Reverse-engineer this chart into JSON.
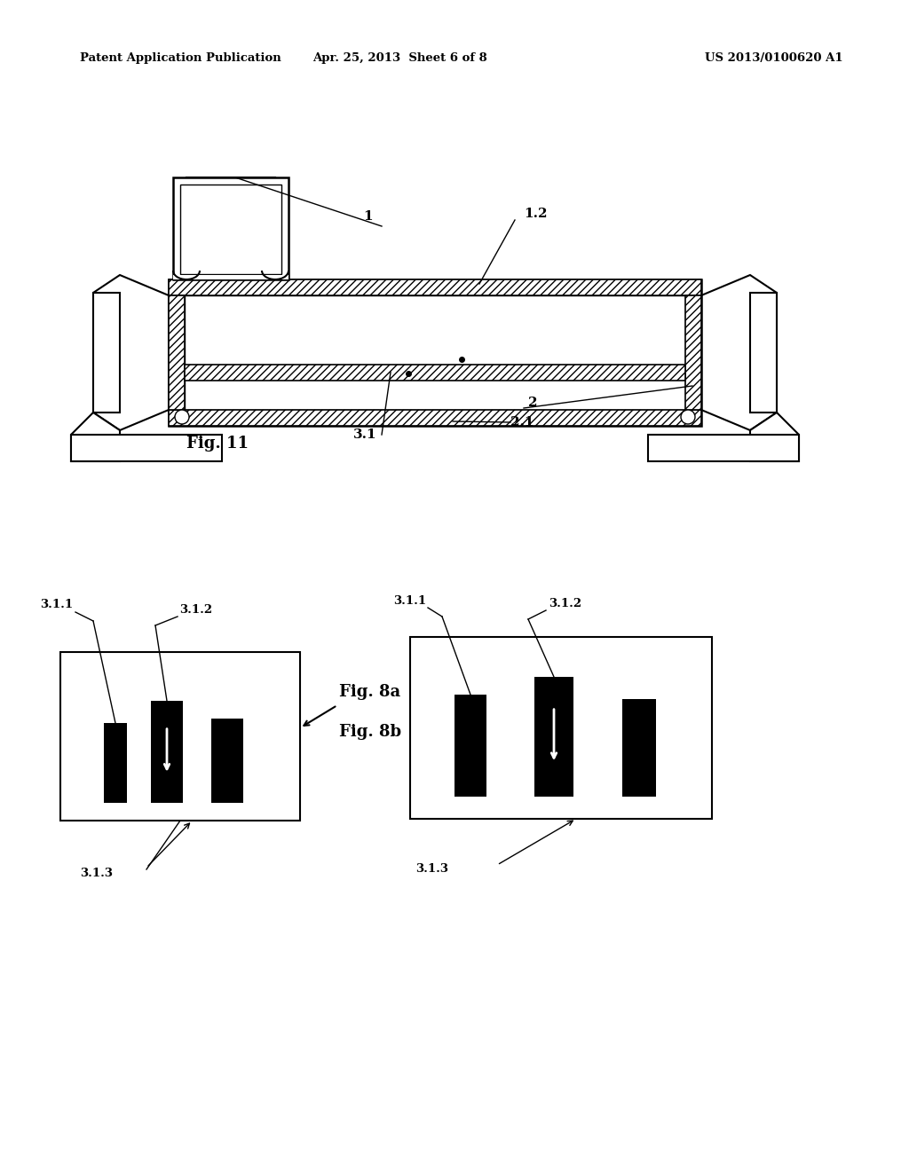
{
  "bg_color": "#ffffff",
  "header_text_left": "Patent Application Publication",
  "header_text_mid": "Apr. 25, 2013  Sheet 6 of 8",
  "header_text_right": "US 2013/0100620 A1",
  "fig11_label": "Fig. 11",
  "fig8a_label": "Fig. 8a",
  "fig8b_label": "Fig. 8b"
}
